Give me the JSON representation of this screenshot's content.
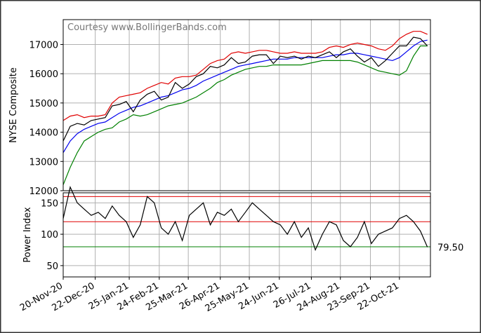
{
  "chart_data": [
    {
      "type": "line",
      "annotation": "Courtesy www.BollingerBands.com",
      "ylabel": "NYSE Composite",
      "x": [
        "2020-11-20",
        "2020-11-27",
        "2020-12-04",
        "2020-12-11",
        "2020-12-18",
        "2020-12-25",
        "2021-01-01",
        "2021-01-08",
        "2021-01-15",
        "2021-01-22",
        "2021-01-29",
        "2021-02-05",
        "2021-02-12",
        "2021-02-19",
        "2021-02-26",
        "2021-03-05",
        "2021-03-12",
        "2021-03-19",
        "2021-03-26",
        "2021-04-02",
        "2021-04-09",
        "2021-04-16",
        "2021-04-23",
        "2021-04-30",
        "2021-05-07",
        "2021-05-14",
        "2021-05-21",
        "2021-05-28",
        "2021-06-04",
        "2021-06-11",
        "2021-06-18",
        "2021-06-25",
        "2021-07-02",
        "2021-07-09",
        "2021-07-16",
        "2021-07-23",
        "2021-07-30",
        "2021-08-06",
        "2021-08-13",
        "2021-08-20",
        "2021-08-27",
        "2021-09-03",
        "2021-09-10",
        "2021-09-17",
        "2021-09-24",
        "2021-10-01",
        "2021-10-08",
        "2021-10-15",
        "2021-10-22",
        "2021-10-29",
        "2021-11-05",
        "2021-11-12",
        "2021-11-19"
      ],
      "series": [
        {
          "color": "#e00000",
          "values": [
            14400,
            14550,
            14600,
            14500,
            14550,
            14550,
            14600,
            15000,
            15200,
            15250,
            15300,
            15350,
            15500,
            15600,
            15700,
            15650,
            15850,
            15900,
            15900,
            15950,
            16150,
            16350,
            16450,
            16500,
            16700,
            16750,
            16700,
            16750,
            16800,
            16800,
            16750,
            16700,
            16700,
            16750,
            16700,
            16700,
            16700,
            16750,
            16900,
            16950,
            16900,
            17000,
            17050,
            17000,
            16950,
            16850,
            16800,
            16950,
            17200,
            17350,
            17450,
            17450,
            17350
          ]
        },
        {
          "color": "#0000ee",
          "values": [
            13300,
            13700,
            13950,
            14100,
            14200,
            14300,
            14350,
            14500,
            14650,
            14750,
            14850,
            14900,
            15000,
            15100,
            15200,
            15250,
            15350,
            15450,
            15500,
            15600,
            15750,
            15850,
            15950,
            16050,
            16150,
            16250,
            16300,
            16350,
            16400,
            16450,
            16500,
            16500,
            16500,
            16550,
            16550,
            16550,
            16550,
            16550,
            16600,
            16650,
            16650,
            16700,
            16700,
            16650,
            16600,
            16550,
            16500,
            16450,
            16550,
            16750,
            16950,
            17100,
            17150
          ]
        },
        {
          "color": "#008000",
          "values": [
            12200,
            12800,
            13300,
            13700,
            13850,
            14000,
            14100,
            14150,
            14350,
            14450,
            14600,
            14550,
            14600,
            14700,
            14800,
            14900,
            14950,
            15000,
            15100,
            15200,
            15350,
            15500,
            15700,
            15800,
            15950,
            16050,
            16150,
            16200,
            16250,
            16250,
            16300,
            16300,
            16300,
            16300,
            16300,
            16350,
            16400,
            16450,
            16450,
            16450,
            16450,
            16450,
            16400,
            16300,
            16200,
            16100,
            16050,
            16000,
            15950,
            16100,
            16600,
            16950,
            16950
          ]
        },
        {
          "color": "#000000",
          "values": [
            13700,
            14200,
            14300,
            14250,
            14400,
            14450,
            14500,
            14900,
            14950,
            15050,
            14700,
            15100,
            15300,
            15400,
            15100,
            15200,
            15700,
            15500,
            15650,
            15900,
            16000,
            16250,
            16200,
            16300,
            16550,
            16350,
            16400,
            16600,
            16650,
            16650,
            16350,
            16600,
            16550,
            16600,
            16500,
            16600,
            16550,
            16650,
            16750,
            16550,
            16750,
            16850,
            16600,
            16400,
            16550,
            16250,
            16450,
            16700,
            16950,
            16950,
            17250,
            17200,
            16950
          ]
        }
      ],
      "ylim": [
        12000,
        17850
      ],
      "yticks": [
        12000,
        13000,
        14000,
        15000,
        16000,
        17000
      ],
      "grid": true
    },
    {
      "type": "line",
      "ylabel": "Power Index",
      "x": [
        "2020-11-20",
        "2020-11-27",
        "2020-12-04",
        "2020-12-11",
        "2020-12-18",
        "2020-12-25",
        "2021-01-01",
        "2021-01-08",
        "2021-01-15",
        "2021-01-22",
        "2021-01-29",
        "2021-02-05",
        "2021-02-12",
        "2021-02-19",
        "2021-02-26",
        "2021-03-05",
        "2021-03-12",
        "2021-03-19",
        "2021-03-26",
        "2021-04-02",
        "2021-04-09",
        "2021-04-16",
        "2021-04-23",
        "2021-04-30",
        "2021-05-07",
        "2021-05-14",
        "2021-05-21",
        "2021-05-28",
        "2021-06-04",
        "2021-06-11",
        "2021-06-18",
        "2021-06-25",
        "2021-07-02",
        "2021-07-09",
        "2021-07-16",
        "2021-07-23",
        "2021-07-30",
        "2021-08-06",
        "2021-08-13",
        "2021-08-20",
        "2021-08-27",
        "2021-09-03",
        "2021-09-10",
        "2021-09-17",
        "2021-09-24",
        "2021-10-01",
        "2021-10-08",
        "2021-10-15",
        "2021-10-22",
        "2021-10-29",
        "2021-11-05",
        "2021-11-12",
        "2021-11-19"
      ],
      "series": [
        {
          "color": "#000000",
          "values": [
            125,
            175,
            150,
            140,
            130,
            135,
            125,
            145,
            130,
            120,
            95,
            115,
            160,
            150,
            110,
            100,
            120,
            90,
            130,
            140,
            150,
            115,
            135,
            130,
            140,
            120,
            135,
            150,
            140,
            130,
            120,
            115,
            100,
            120,
            95,
            110,
            75,
            100,
            120,
            115,
            90,
            80,
            95,
            120,
            85,
            100,
            105,
            110,
            125,
            130,
            120,
            105,
            79.5
          ],
          "value_labels": [
            null,
            null,
            null,
            null,
            null,
            null,
            null,
            null,
            null,
            null,
            null,
            null,
            null,
            null,
            null,
            null,
            null,
            null,
            null,
            null,
            null,
            null,
            null,
            null,
            null,
            null,
            null,
            null,
            null,
            null,
            null,
            null,
            null,
            null,
            null,
            null,
            null,
            null,
            null,
            null,
            null,
            null,
            null,
            null,
            null,
            null,
            null,
            null,
            null,
            null,
            null,
            null,
            "79.50"
          ]
        }
      ],
      "hlines": [
        {
          "value": 160,
          "color": "#e00000"
        },
        {
          "value": 120,
          "color": "#e00000"
        },
        {
          "value": 80,
          "color": "#008000"
        }
      ],
      "ylim": [
        32,
        166
      ],
      "yticks": [
        50,
        100,
        150
      ],
      "xlim": [
        "2020-11-20",
        "2021-11-22"
      ],
      "xticks": [
        {
          "value": "2020-11-20",
          "label": "20-Nov-20"
        },
        {
          "value": "2020-12-22",
          "label": "22-Dec-20"
        },
        {
          "value": "2021-01-25",
          "label": "25-Jan-21"
        },
        {
          "value": "2021-02-24",
          "label": "24-Feb-21"
        },
        {
          "value": "2021-03-25",
          "label": "25-Mar-21"
        },
        {
          "value": "2021-04-26",
          "label": "26-Apr-21"
        },
        {
          "value": "2021-05-25",
          "label": "25-May-21"
        },
        {
          "value": "2021-06-24",
          "label": "24-Jun-21"
        },
        {
          "value": "2021-07-26",
          "label": "26-Jul-21"
        },
        {
          "value": "2021-08-24",
          "label": "24-Aug-21"
        },
        {
          "value": "2021-09-23",
          "label": "23-Sep-21"
        },
        {
          "value": "2021-10-22",
          "label": "22-Oct-21"
        }
      ],
      "grid": true
    }
  ]
}
